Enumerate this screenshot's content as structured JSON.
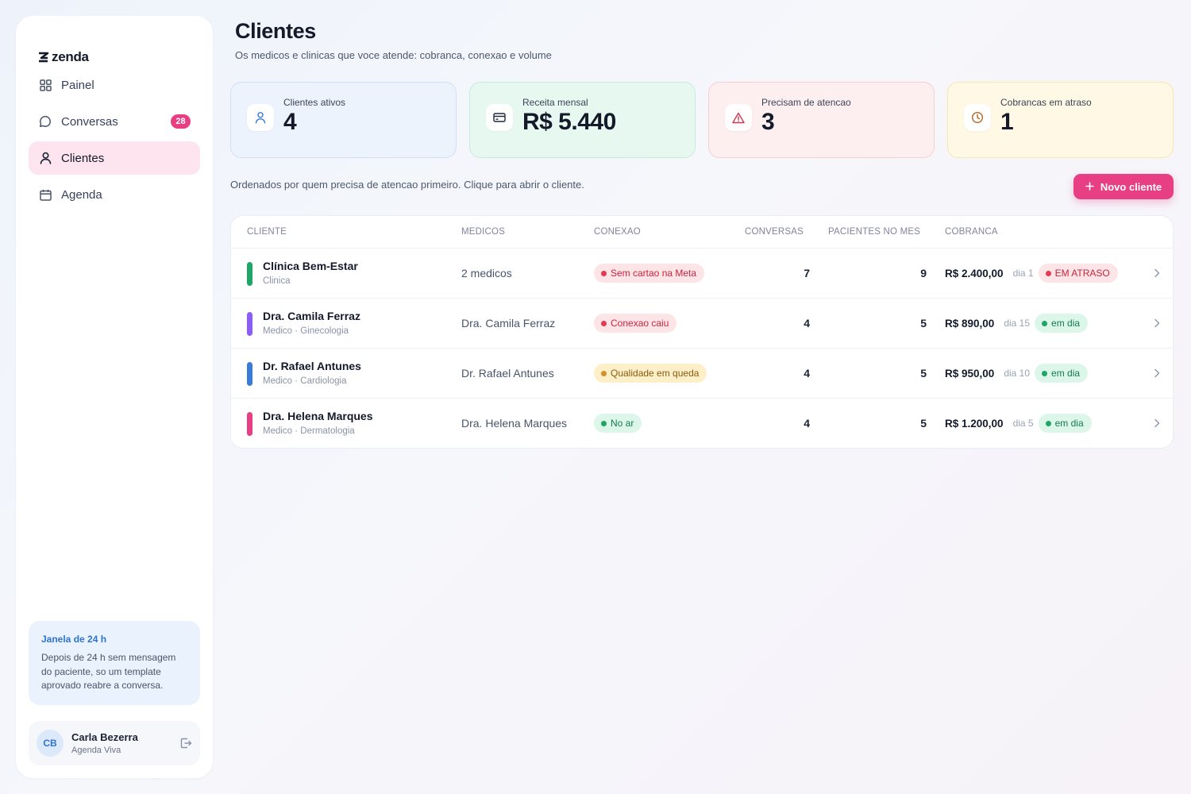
{
  "brand": {
    "name": "zenda"
  },
  "sidebar": {
    "items": [
      {
        "label": "Painel",
        "icon": "grid-icon"
      },
      {
        "label": "Conversas",
        "icon": "chat-icon",
        "badge": "28"
      },
      {
        "label": "Clientes",
        "icon": "user-icon",
        "active": true
      },
      {
        "label": "Agenda",
        "icon": "calendar-icon"
      }
    ],
    "info": {
      "title": "Janela de 24 h",
      "text": "Depois de 24 h sem mensagem do paciente, so um template aprovado reabre a conversa."
    },
    "user": {
      "initials": "CB",
      "name": "Carla Bezerra",
      "org": "Agenda Viva"
    }
  },
  "header": {
    "title": "Clientes",
    "subtitle": "Os medicos e clinicas que voce atende: cobranca, conexao e volume"
  },
  "stats": [
    {
      "label": "Clientes ativos",
      "value": "4",
      "icon": "user-icon",
      "color": "#3a7bd5"
    },
    {
      "label": "Receita mensal",
      "value": "R$ 5.440",
      "icon": "card-icon",
      "color": "#1f2a3d"
    },
    {
      "label": "Precisam de atencao",
      "value": "3",
      "icon": "warning-icon",
      "color": "#d4344f"
    },
    {
      "label": "Cobrancas em atraso",
      "value": "1",
      "icon": "clock-icon",
      "color": "#b5651d"
    }
  ],
  "list": {
    "hint": "Ordenados por quem precisa de atencao primeiro. Clique para abrir o cliente.",
    "new_button": "Novo cliente",
    "columns": [
      "CLIENTE",
      "MEDICOS",
      "CONEXAO",
      "CONVERSAS",
      "PACIENTES NO MES",
      "COBRANCA"
    ],
    "rows": [
      {
        "name": "Clínica Bem-Estar",
        "type": "Clinica",
        "color": "#1ea567",
        "medicos": "2 medicos",
        "conexao": "Sem cartao na Meta",
        "conexao_status": "red",
        "conversas": "7",
        "pacientes": "9",
        "amount": "R$ 2.400,00",
        "dia": "dia 1",
        "status": "EM ATRASO",
        "status_kind": "red"
      },
      {
        "name": "Dra. Camila Ferraz",
        "type": "Medico · Ginecologia",
        "color": "#8b5cf6",
        "medicos": "Dra. Camila Ferraz",
        "conexao": "Conexao caiu",
        "conexao_status": "red",
        "conversas": "4",
        "pacientes": "5",
        "amount": "R$ 890,00",
        "dia": "dia 15",
        "status": "em dia",
        "status_kind": "grn"
      },
      {
        "name": "Dr. Rafael Antunes",
        "type": "Medico · Cardiologia",
        "color": "#3a7bd5",
        "medicos": "Dr. Rafael Antunes",
        "conexao": "Qualidade em queda",
        "conexao_status": "yel",
        "conversas": "4",
        "pacientes": "5",
        "amount": "R$ 950,00",
        "dia": "dia 10",
        "status": "em dia",
        "status_kind": "grn"
      },
      {
        "name": "Dra. Helena Marques",
        "type": "Medico · Dermatologia",
        "color": "#e83e83",
        "medicos": "Dra. Helena Marques",
        "conexao": "No ar",
        "conexao_status": "grn",
        "conversas": "4",
        "pacientes": "5",
        "amount": "R$ 1.200,00",
        "dia": "dia 5",
        "status": "em dia",
        "status_kind": "grn"
      }
    ]
  }
}
